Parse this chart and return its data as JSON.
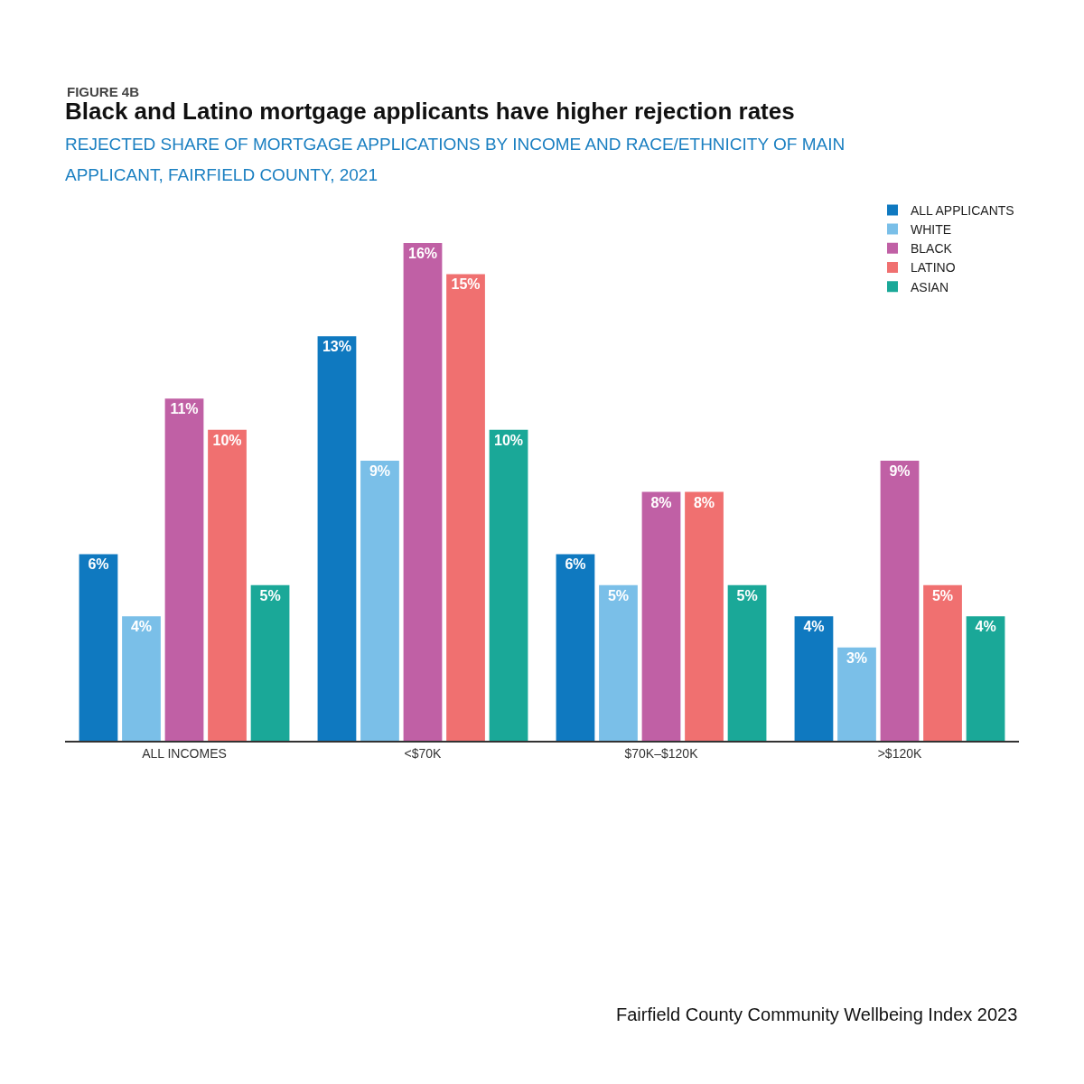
{
  "chart_data": {
    "type": "bar",
    "title": "Black and Latino mortgage applicants have higher rejection rates",
    "subtitle": "REJECTED SHARE OF MORTGAGE APPLICATIONS BY INCOME AND RACE/ETHNICITY OF MAIN APPLICANT, FAIRFIELD COUNTY, 2021",
    "annotations": [
      "FIGURE 4B",
      "Fairfield County Community Wellbeing Index 2023"
    ],
    "categories": [
      "ALL INCOMES",
      "<$70K",
      "$70K–$120K",
      ">$120K"
    ],
    "series": [
      {
        "name": "ALL APPLICANTS",
        "color": "#0f79c0",
        "values": [
          6,
          13,
          6,
          4
        ],
        "value_labels": [
          "6%",
          "13%",
          "6%",
          "4%"
        ]
      },
      {
        "name": "WHITE",
        "color": "#7abfe8",
        "values": [
          4,
          9,
          5,
          3
        ],
        "value_labels": [
          "4%",
          "9%",
          "5%",
          "3%"
        ]
      },
      {
        "name": "BLACK",
        "color": "#c060a5",
        "values": [
          11,
          16,
          8,
          9
        ],
        "value_labels": [
          "11%",
          "16%",
          "8%",
          "9%"
        ]
      },
      {
        "name": "LATINO",
        "color": "#f07070",
        "values": [
          10,
          15,
          8,
          5
        ],
        "value_labels": [
          "10%",
          "15%",
          "8%",
          "5%"
        ]
      },
      {
        "name": "ASIAN",
        "color": "#1aa898",
        "values": [
          5,
          10,
          5,
          4
        ],
        "value_labels": [
          "5%",
          "10%",
          "5%",
          "4%"
        ]
      }
    ],
    "legend": "top right"
  }
}
